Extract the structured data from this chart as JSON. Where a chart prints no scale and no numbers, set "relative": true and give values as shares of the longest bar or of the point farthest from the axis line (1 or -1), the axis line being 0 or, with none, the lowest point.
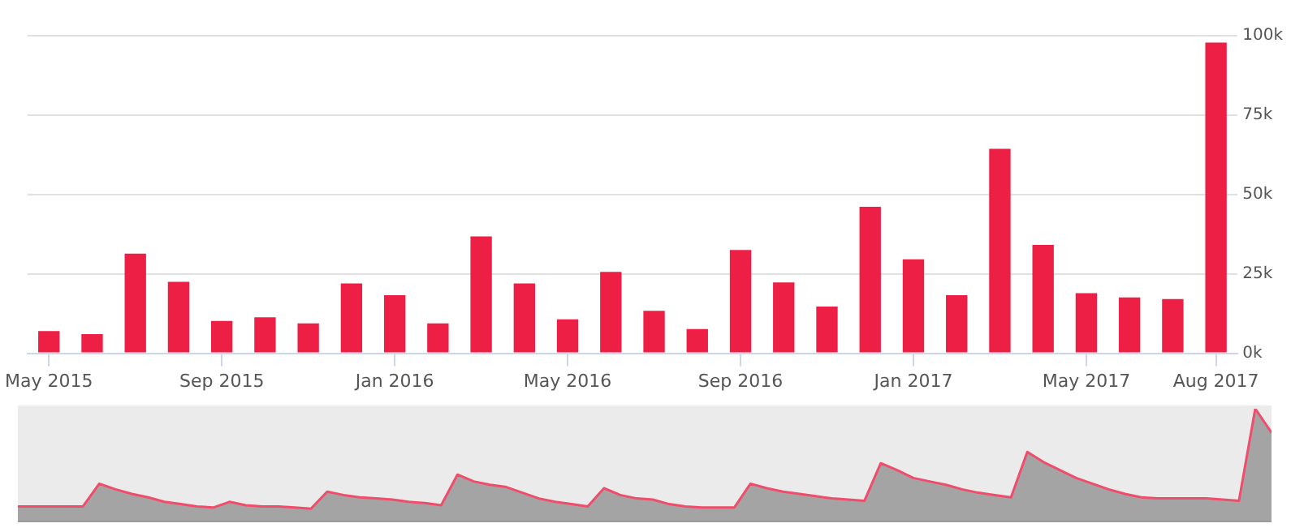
{
  "chart_data": [
    {
      "type": "bar",
      "categories": [
        "May 2015",
        null,
        null,
        null,
        "Sep 2015",
        null,
        null,
        null,
        "Jan 2016",
        null,
        null,
        null,
        "May 2016",
        null,
        null,
        null,
        "Sep 2016",
        null,
        null,
        null,
        "Jan 2017",
        null,
        null,
        null,
        "May 2017",
        null,
        null,
        "Aug 2017"
      ],
      "series": [
        {
          "color": "#ed1f45",
          "values": [
            7,
            6,
            31.4,
            22.5,
            10.2,
            11.3,
            9.4,
            22,
            18.3,
            9.4,
            36.8,
            22,
            10.7,
            25.6,
            13.4,
            7.6,
            32.5,
            22.3,
            14.7,
            46.1,
            29.6,
            18.3,
            64.4,
            34.1,
            18.9,
            17.6,
            17.1,
            97.8
          ]
        }
      ],
      "ylim": [
        0,
        100
      ],
      "yticks": [
        {
          "value": 0,
          "label": "0k"
        },
        {
          "value": 25,
          "label": "25k"
        },
        {
          "value": 50,
          "label": "50k"
        },
        {
          "value": 75,
          "label": "75k"
        },
        {
          "value": 100,
          "label": "100k"
        }
      ],
      "grid": "y",
      "legend": false
    },
    {
      "type": "area",
      "relative": true,
      "categories": [
        null,
        null,
        null,
        null,
        null,
        null,
        null,
        null,
        null,
        null,
        null,
        null,
        null,
        null,
        null,
        null,
        null,
        null,
        null,
        null,
        null,
        null,
        null,
        null,
        null,
        null,
        null,
        null,
        null,
        null,
        null,
        null,
        null,
        null,
        null,
        null,
        null,
        null,
        null,
        null,
        null,
        null,
        null,
        null,
        null,
        null,
        null,
        null,
        null,
        null,
        null,
        null,
        null,
        null,
        null,
        null,
        null,
        null,
        null,
        null,
        null,
        null,
        null,
        null,
        null,
        null,
        null,
        null,
        null,
        null,
        null,
        null,
        null,
        null,
        null,
        null,
        null,
        null
      ],
      "series": [
        {
          "color": "#ef4d6b",
          "values": [
            0.14,
            0.14,
            0.14,
            0.14,
            0.14,
            0.34,
            0.29,
            0.25,
            0.22,
            0.18,
            0.16,
            0.14,
            0.13,
            0.18,
            0.15,
            0.14,
            0.14,
            0.13,
            0.12,
            0.27,
            0.24,
            0.22,
            0.21,
            0.2,
            0.18,
            0.17,
            0.15,
            0.42,
            0.36,
            0.33,
            0.31,
            0.26,
            0.21,
            0.18,
            0.16,
            0.14,
            0.3,
            0.24,
            0.21,
            0.2,
            0.16,
            0.14,
            0.13,
            0.13,
            0.13,
            0.34,
            0.3,
            0.27,
            0.25,
            0.23,
            0.21,
            0.2,
            0.19,
            0.52,
            0.46,
            0.39,
            0.36,
            0.33,
            0.29,
            0.26,
            0.24,
            0.22,
            0.62,
            0.53,
            0.46,
            0.39,
            0.34,
            0.29,
            0.25,
            0.22,
            0.21,
            0.21,
            0.21,
            0.21,
            0.2,
            0.19,
            1,
            0.79
          ]
        }
      ],
      "legend": false
    }
  ]
}
